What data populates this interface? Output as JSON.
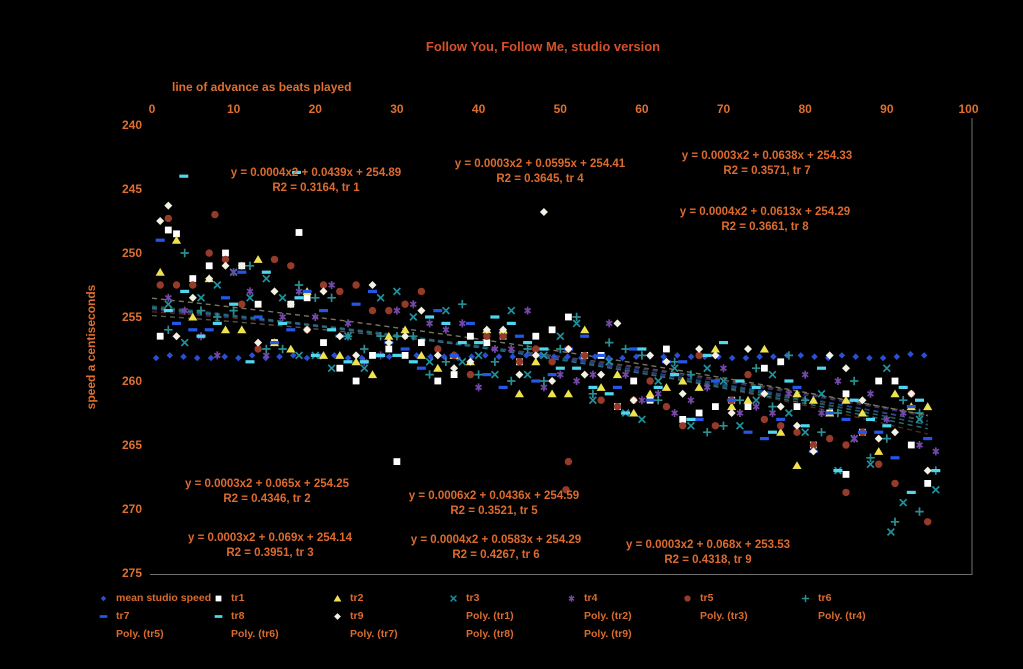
{
  "title": "Follow You, Follow Me, studio version",
  "x_axis": {
    "title": "line of advance as beats played",
    "ticks": [
      "0",
      "10",
      "20",
      "30",
      "40",
      "50",
      "60",
      "70",
      "80",
      "90",
      "100"
    ]
  },
  "y_axis": {
    "title": "speed a centiseconds",
    "ticks": [
      "240",
      "245",
      "250",
      "255",
      "260",
      "265",
      "270",
      "275"
    ]
  },
  "colors": {
    "background": "#000000",
    "accent_text": "#de6f30",
    "title_text": "#d5512b",
    "axis_line": "#6f6f6f"
  },
  "annotations": {
    "tr1": {
      "line1": "y = 0.0004x2 + 0.0439x + 254.89",
      "line2": "R2 = 0.3164, tr 1"
    },
    "tr2": {
      "line1": "y = 0.0003x2 + 0.065x + 254.25",
      "line2": "R2 = 0.4346, tr 2"
    },
    "tr3": {
      "line1": "y = 0.0003x2 + 0.069x + 254.14",
      "line2": "R2 = 0.3951, tr 3"
    },
    "tr4": {
      "line1": "y = 0.0003x2 + 0.0595x + 254.41",
      "line2": "R2 = 0.3645, tr 4"
    },
    "tr5": {
      "line1": "y = 0.0006x2 + 0.0436x + 254.59",
      "line2": "R2 = 0.3521, tr 5"
    },
    "tr6": {
      "line1": "y = 0.0004x2 + 0.0583x + 254.29",
      "line2": "R2 = 0.4267, tr 6"
    },
    "tr7": {
      "line1": "y = 0.0003x2 + 0.0638x + 254.33",
      "line2": "R2 = 0.3571, tr 7"
    },
    "tr8": {
      "line1": "y = 0.0004x2 + 0.0613x + 254.29",
      "line2": "R2 = 0.3661, tr 8"
    },
    "tr9": {
      "line1": "y = 0.0003x2 + 0.068x + 253.53",
      "line2": "R2 = 0.4318, tr 9"
    }
  },
  "legend": {
    "rows": [
      [
        {
          "label": "mean studio speed",
          "marker": "diamond",
          "color": "#2a4fd2",
          "scale": 0.8
        },
        {
          "label": "tr1",
          "marker": "square",
          "color": "#ffffff"
        },
        {
          "label": "tr2",
          "marker": "triangle",
          "color": "#efe24e"
        },
        {
          "label": "tr3",
          "marker": "x",
          "color": "#1f929e"
        },
        {
          "label": "tr4",
          "marker": "asterisk",
          "color": "#7448a8"
        },
        {
          "label": "tr5",
          "marker": "circle",
          "color": "#963a2a"
        },
        {
          "label": "tr6",
          "marker": "plus",
          "color": "#2a8f93"
        }
      ],
      [
        {
          "label": "tr7",
          "marker": "dash",
          "color": "#2457e8"
        },
        {
          "label": "tr8",
          "marker": "dash",
          "color": "#50d6ee"
        },
        {
          "label": "tr9",
          "marker": "diamond",
          "color": "#f2f1e4"
        },
        {
          "label": "Poly. (tr1)",
          "marker": "none"
        },
        {
          "label": "Poly. (tr2)",
          "marker": "none"
        },
        {
          "label": "Poly. (tr3)",
          "marker": "none"
        },
        {
          "label": "Poly. (tr4)",
          "marker": "none"
        }
      ],
      [
        {
          "label": "Poly. (tr5)",
          "marker": "none"
        },
        {
          "label": "Poly. (tr6)",
          "marker": "none"
        },
        {
          "label": "Poly. (tr7)",
          "marker": "none"
        },
        {
          "label": "Poly. (tr8)",
          "marker": "none"
        },
        {
          "label": "Poly. (tr9)",
          "marker": "none"
        }
      ]
    ]
  },
  "chart_data": {
    "type": "scatter",
    "x_range": [
      0,
      100
    ],
    "y_range": [
      240,
      275
    ],
    "y_axis_inverted": true,
    "grid": false,
    "legend_position": "bottom",
    "skew": 2.0,
    "spread_growth": 0.45,
    "noise_table": [
      0.62,
      -0.84,
      0.17,
      -0.45,
      0.93,
      -0.21,
      0.38,
      -0.97,
      0.05,
      0.71,
      -0.58,
      0.26,
      -0.12,
      0.84,
      -0.37,
      0.49,
      -0.76,
      0.11,
      0.58,
      -0.29,
      0.95,
      -0.66,
      0.33,
      -0.08,
      0.77,
      -0.52,
      0.21,
      0.44,
      -0.91,
      0.66,
      -0.18,
      0.09,
      0.86,
      -0.41,
      0.29,
      -0.73,
      0.52,
      0.02,
      -0.31,
      0.68,
      -0.59,
      0.36,
      -0.14,
      0.81,
      -0.47,
      0.24,
      0.57,
      -0.88,
      0.13,
      0.46,
      -0.25,
      0.72,
      -0.63,
      0.31,
      -0.06,
      0.89,
      -0.34,
      0.18,
      0.53,
      -0.79,
      0.41,
      -0.16,
      0.64,
      -0.49
    ],
    "series": [
      {
        "name": "mean studio speed",
        "marker": "diamond",
        "color": "#2a4fd2",
        "msize": 0.82,
        "trend": [
          0,
          0,
          258.1
        ],
        "noise_amp": 0.12,
        "skew_scale": 0,
        "quantize": 0.1,
        "phase": 9,
        "stride": 5,
        "x_start": 0.5,
        "x_step": 1.68,
        "count": 57
      },
      {
        "name": "tr1",
        "marker": "square",
        "color": "#ffffff",
        "poly_color": "#55554a",
        "trend": [
          0.0004,
          0.0439,
          254.89
        ],
        "r2": 0.3164,
        "noise_amp": 3.6,
        "skew_scale": 1,
        "quantize": 0.5,
        "phase": 0,
        "stride": 7,
        "x_start": 1,
        "x_step": 2,
        "count": 48
      },
      {
        "name": "tr2",
        "marker": "triangle",
        "color": "#efe24e",
        "poly_color": "#8a7d26",
        "trend": [
          0.0003,
          0.065,
          254.25
        ],
        "r2": 0.4346,
        "noise_amp": 3.4,
        "skew_scale": 1,
        "quantize": 0.5,
        "phase": 5,
        "stride": 11,
        "x_start": 1,
        "x_step": 2,
        "count": 48
      },
      {
        "name": "tr3",
        "marker": "x",
        "color": "#1f929e",
        "poly_color": "#1d565e",
        "trend": [
          0.0003,
          0.069,
          254.14
        ],
        "r2": 0.3951,
        "noise_amp": 3.8,
        "skew_scale": 1,
        "quantize": 0.5,
        "phase": 11,
        "stride": 13,
        "x_start": 2,
        "x_step": 2,
        "count": 48
      },
      {
        "name": "tr4",
        "marker": "asterisk",
        "color": "#7448a8",
        "poly_color": "#40306b",
        "trend": [
          0.0003,
          0.0595,
          254.41
        ],
        "r2": 0.3645,
        "noise_amp": 3.3,
        "skew_scale": 1,
        "quantize": 0.5,
        "phase": 17,
        "stride": 17,
        "x_start": 2,
        "x_step": 2,
        "count": 48
      },
      {
        "name": "tr5",
        "marker": "circle",
        "color": "#963a2a",
        "poly_color": "#5e2519",
        "trend": [
          0.0006,
          0.0436,
          254.59
        ],
        "r2": 0.3521,
        "noise_amp": 3.7,
        "skew_scale": 1,
        "quantize": 0.5,
        "phase": 23,
        "stride": 19,
        "x_start": 1,
        "x_step": 2,
        "count": 48
      },
      {
        "name": "tr6",
        "marker": "plus",
        "color": "#2a8f93",
        "poly_color": "#1d5d60",
        "trend": [
          0.0004,
          0.0583,
          254.29
        ],
        "r2": 0.4267,
        "noise_amp": 3.5,
        "skew_scale": 1,
        "quantize": 0.5,
        "phase": 29,
        "stride": 23,
        "x_start": 2,
        "x_step": 2,
        "count": 48
      },
      {
        "name": "tr7",
        "marker": "dash",
        "color": "#2457e8",
        "poly_color": "#1e3d96",
        "trend": [
          0.0003,
          0.0638,
          254.33
        ],
        "r2": 0.3571,
        "noise_amp": 3.2,
        "skew_scale": 1,
        "quantize": 0.5,
        "phase": 35,
        "stride": 29,
        "x_start": 1,
        "x_step": 2,
        "count": 48
      },
      {
        "name": "tr8",
        "marker": "dash",
        "color": "#50d6ee",
        "poly_color": "#27707f",
        "trend": [
          0.0004,
          0.0613,
          254.29
        ],
        "r2": 0.3661,
        "noise_amp": 3.6,
        "skew_scale": 1,
        "quantize": 0.5,
        "phase": 41,
        "stride": 31,
        "x_start": 2,
        "x_step": 2,
        "count": 48
      },
      {
        "name": "tr9",
        "marker": "diamond",
        "color": "#f2f1e4",
        "poly_color": "#77765e",
        "trend": [
          0.0003,
          0.068,
          253.53
        ],
        "r2": 0.4318,
        "noise_amp": 3.4,
        "skew_scale": 1,
        "quantize": 0.5,
        "phase": 47,
        "stride": 37,
        "x_start": 1,
        "x_step": 2,
        "count": 48
      }
    ],
    "outliers": [
      {
        "series": "tr8",
        "x": 3.9,
        "y": 244.0
      },
      {
        "series": "tr8",
        "x": 17.7,
        "y": 243.7
      },
      {
        "series": "tr9",
        "x": 2,
        "y": 246.3
      },
      {
        "series": "tr5",
        "x": 2,
        "y": 247.3
      },
      {
        "series": "tr5",
        "x": 7.7,
        "y": 247.0
      },
      {
        "series": "tr1",
        "x": 2,
        "y": 248.2
      },
      {
        "series": "tr1",
        "x": 18,
        "y": 248.4
      },
      {
        "series": "tr9",
        "x": 48,
        "y": 246.8
      },
      {
        "series": "tr1",
        "x": 30,
        "y": 266.3
      },
      {
        "series": "tr5",
        "x": 51,
        "y": 266.3
      },
      {
        "series": "tr5",
        "x": 50.7,
        "y": 268.5
      },
      {
        "series": "tr1",
        "x": 85,
        "y": 267.3
      },
      {
        "series": "tr2",
        "x": 79,
        "y": 266.6
      },
      {
        "series": "tr5",
        "x": 85,
        "y": 268.7
      },
      {
        "series": "tr6",
        "x": 91,
        "y": 271.0
      },
      {
        "series": "tr6",
        "x": 94,
        "y": 270.2
      },
      {
        "series": "tr8",
        "x": 93,
        "y": 268.7
      },
      {
        "series": "tr3",
        "x": 90.5,
        "y": 271.8
      }
    ]
  }
}
